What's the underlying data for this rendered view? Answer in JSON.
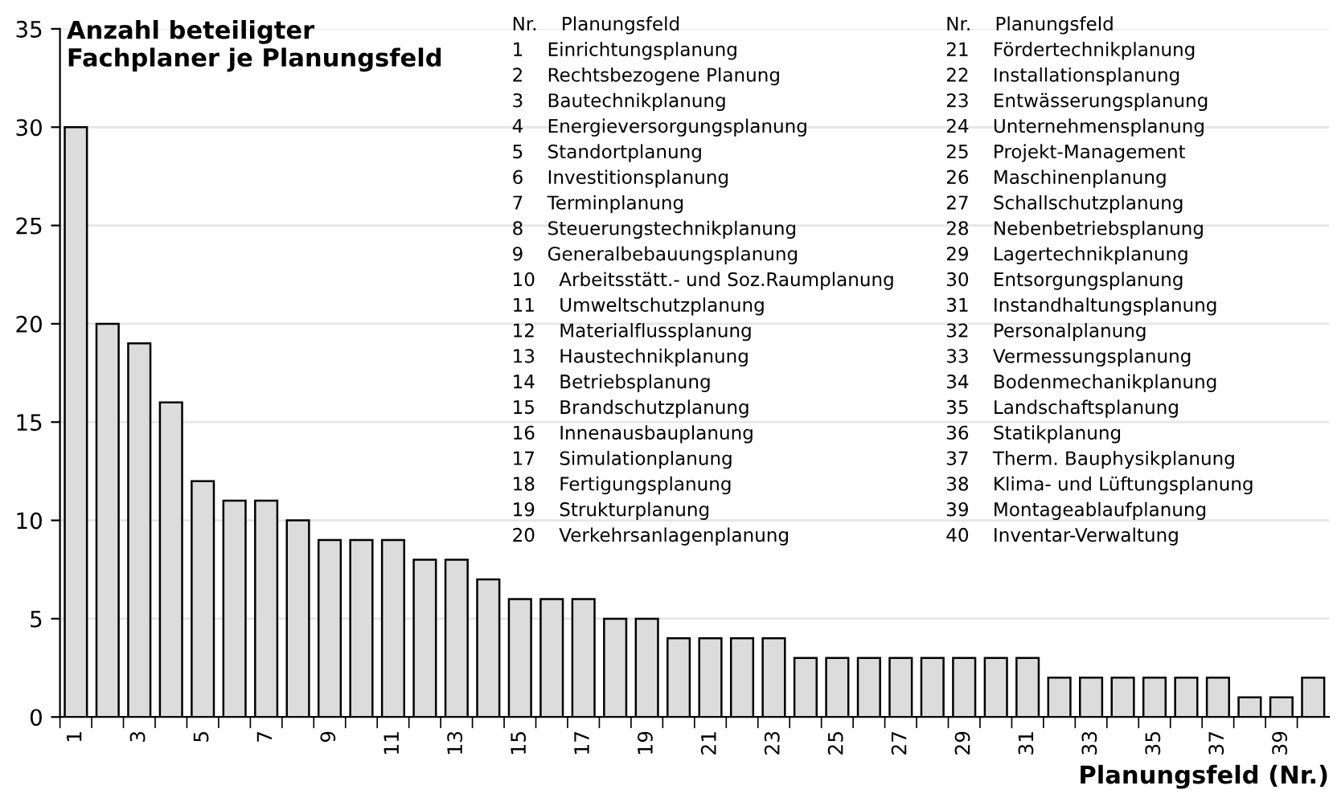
{
  "chart_data": {
    "type": "bar",
    "title": "Anzahl beteiligter\nFachplaner je Planungsfeld",
    "xlabel": "Planungsfeld (Nr.)",
    "categories": [
      "1",
      null,
      "3",
      null,
      "5",
      null,
      "7",
      null,
      "9",
      null,
      "11",
      null,
      "13",
      null,
      "15",
      null,
      "17",
      null,
      "19",
      null,
      "21",
      null,
      "23",
      null,
      "25",
      null,
      "27",
      null,
      "29",
      null,
      "31",
      null,
      "33",
      null,
      "35",
      null,
      "37",
      null,
      "39",
      null
    ],
    "values": [
      30,
      20,
      19,
      16,
      12,
      11,
      11,
      10,
      9,
      9,
      9,
      8,
      8,
      7,
      6,
      6,
      6,
      5,
      5,
      4,
      4,
      4,
      4,
      3,
      3,
      3,
      3,
      3,
      3,
      3,
      3,
      2,
      2,
      2,
      2,
      2,
      2,
      1,
      1,
      2
    ],
    "color": "#dcdcdc",
    "ylim": [
      0,
      35
    ],
    "yticks": [
      0,
      5,
      10,
      15,
      20,
      25,
      30,
      35
    ],
    "grid": "y",
    "annotations": [
      "Nr.    Planungsfeld",
      "Nr.    Planungsfeld",
      "1    Einrichtungsplanung",
      "21    Fördertechnikplanung",
      "2    Rechtsbezogene Planung",
      "22    Installationsplanung",
      "3    Bautechnikplanung",
      "23    Entwässerungsplanung",
      "4    Energieversorgungsplanung",
      "24    Unternehmensplanung",
      "5    Standortplanung",
      "25    Projekt-Management",
      "6    Investitionsplanung",
      "26    Maschinenplanung",
      "7    Terminplanung",
      "27    Schallschutzplanung",
      "8    Steuerungstechnikplanung",
      "28    Nebenbetriebsplanung",
      "9    Generalbebauungsplanung",
      "29    Lagertechnikplanung",
      "10    Arbeitsstätt.- und Soz.Raumplanung",
      "30    Entsorgungsplanung",
      "11    Umweltschutzplanung",
      "31    Instandhaltungsplanung",
      "12    Materialflussplanung",
      "32    Personalplanung",
      "13    Haustechnikplanung",
      "33    Vermessungsplanung",
      "14    Betriebsplanung",
      "34    Bodenmechanikplanung",
      "15    Brandschutzplanung",
      "35    Landschaftsplanung",
      "16    Innenausbauplanung",
      "36    Statikplanung",
      "17    Simulationplanung",
      "37    Therm. Bauphysikplanung",
      "18    Fertigungsplanung",
      "38    Klima- und Lüftungsplanung",
      "19    Strukturplanung",
      "39    Montageablaufplanung",
      "20    Verkehrsanlagenplanung",
      "40    Inventar-Verwaltung"
    ]
  }
}
